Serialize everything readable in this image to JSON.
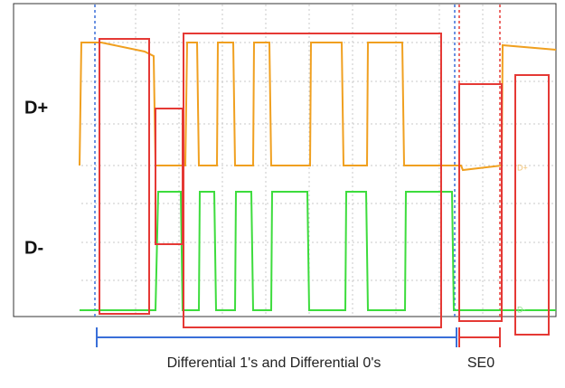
{
  "signals": {
    "d_plus": "D+",
    "d_minus": "D-"
  },
  "annotations": {
    "differential": "Differential 1's and Differential 0's",
    "se0": "SE0"
  }
}
